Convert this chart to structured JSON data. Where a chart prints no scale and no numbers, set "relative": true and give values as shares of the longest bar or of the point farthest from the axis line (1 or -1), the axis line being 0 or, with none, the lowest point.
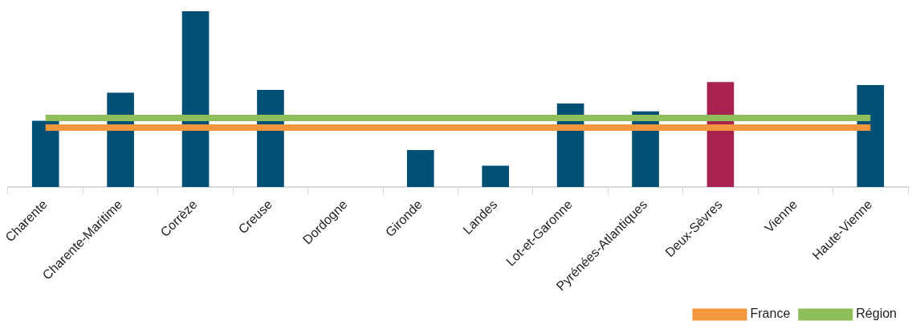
{
  "chart_data": {
    "type": "bar",
    "relative": true,
    "categories": [
      "Charente",
      "Charente-Maritime",
      "Corrèze",
      "Creuse",
      "Dordogne",
      "Gironde",
      "Landes",
      "Lot-et-Garonne",
      "Pyrénées-Atlantiques",
      "Deux-Sèvres",
      "Vienne",
      "Haute-Vienne"
    ],
    "values": [
      0.376,
      0.536,
      1,
      0.552,
      null,
      0.21,
      0.12,
      0.475,
      0.43,
      0.597,
      null,
      0.58
    ],
    "colors": [
      "#004f74",
      "#004f74",
      "#004f74",
      "#004f74",
      "#004f74",
      "#004f74",
      "#004f74",
      "#004f74",
      "#004f74",
      "#a8234f",
      "#004f74",
      "#004f74"
    ],
    "ref_lines": [
      {
        "axis": "y",
        "value": 0.337,
        "label": "France",
        "color": "#f4963c"
      },
      {
        "axis": "y",
        "value": 0.392,
        "label": "Région",
        "color": "#8fbf5b"
      }
    ],
    "legend": "bottom right"
  }
}
